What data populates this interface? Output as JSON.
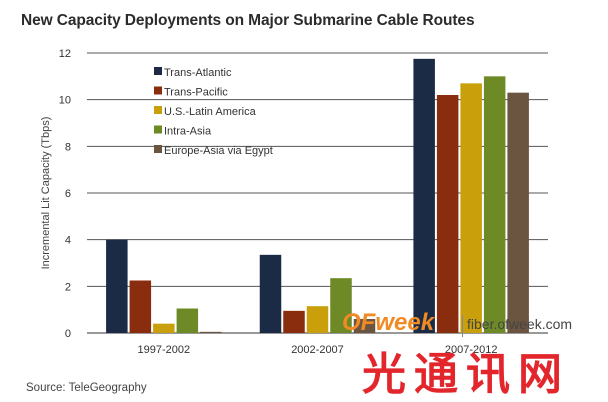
{
  "chart_data": {
    "type": "bar",
    "title": "New Capacity Deployments on Major Submarine Cable Routes",
    "xlabel": "",
    "ylabel": "Incremental Lit Capacity (Tbps)",
    "ylim": [
      0,
      12
    ],
    "yticks": [
      0,
      2,
      4,
      6,
      8,
      10,
      12
    ],
    "grid": true,
    "legend_position": "top-left",
    "categories": [
      "1997-2002",
      "2002-2007",
      "2007-2012"
    ],
    "series": [
      {
        "name": "Trans-Atlantic",
        "color": "#1c2b45",
        "values": [
          4.0,
          3.35,
          11.75
        ]
      },
      {
        "name": "Trans-Pacific",
        "color": "#8a2c0e",
        "values": [
          2.25,
          0.95,
          10.2
        ]
      },
      {
        "name": "U.S.-Latin America",
        "color": "#c9a00c",
        "values": [
          0.4,
          1.15,
          10.7
        ]
      },
      {
        "name": "Intra-Asia",
        "color": "#6e8a26",
        "values": [
          1.05,
          2.35,
          11.0
        ]
      },
      {
        "name": "Europe-Asia via Egypt",
        "color": "#6b5540",
        "values": [
          0.05,
          0.6,
          10.3
        ]
      }
    ],
    "source": "Source: TeleGeography"
  },
  "watermark": {
    "brand": "OFweek",
    "url": "fiber.ofweek.com",
    "cn": "光通讯网"
  }
}
